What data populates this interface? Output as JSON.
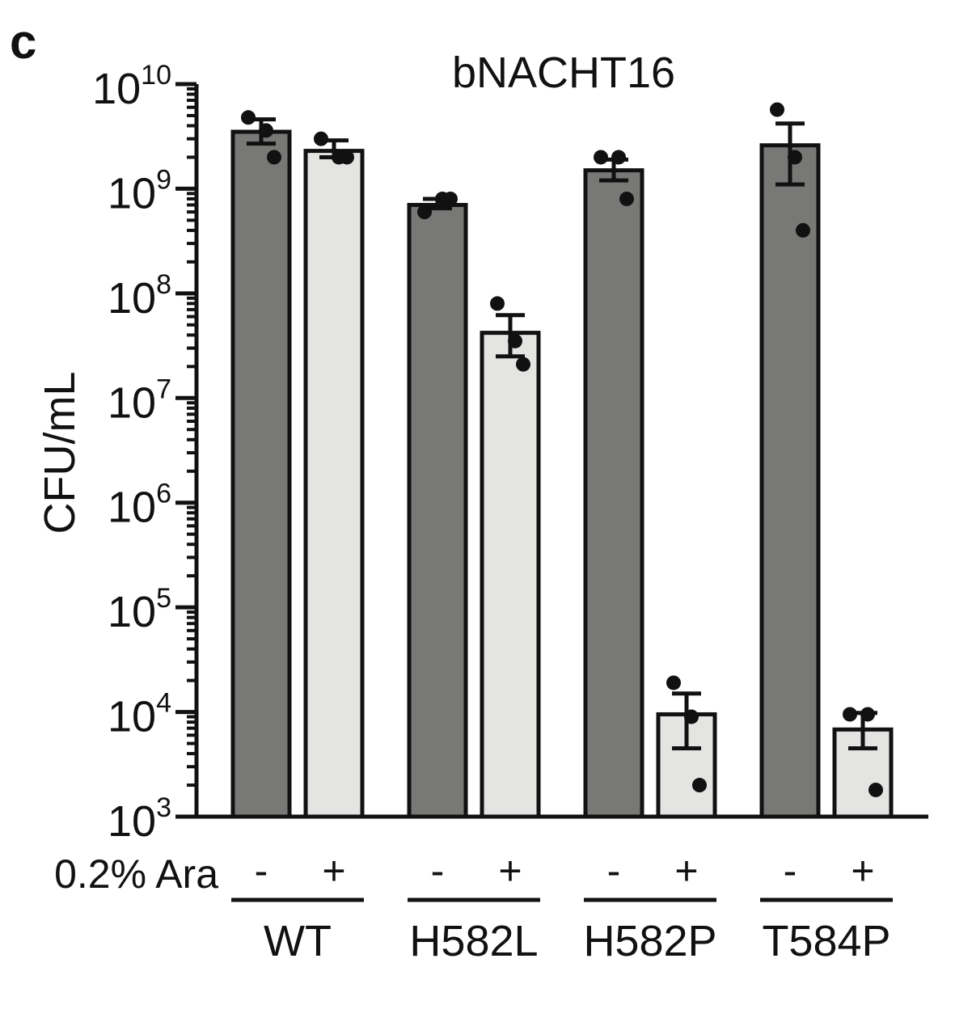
{
  "chart_data": {
    "type": "bar",
    "panel_label": "c",
    "title": "bNACHT16",
    "ylabel": "CFU/mL",
    "yscale": "log",
    "ylim": [
      1000,
      10000000000
    ],
    "ytick_labels": [
      {
        "base": "10",
        "exp": "3",
        "value": 1000
      },
      {
        "base": "10",
        "exp": "4",
        "value": 10000
      },
      {
        "base": "10",
        "exp": "5",
        "value": 100000
      },
      {
        "base": "10",
        "exp": "6",
        "value": 1000000
      },
      {
        "base": "10",
        "exp": "7",
        "value": 10000000
      },
      {
        "base": "10",
        "exp": "8",
        "value": 100000000
      },
      {
        "base": "10",
        "exp": "9",
        "value": 1000000000
      },
      {
        "base": "10",
        "exp": "10",
        "value": 10000000000
      }
    ],
    "condition_label": "0.2% Ara",
    "groups": [
      {
        "name": "WT",
        "bars": [
          {
            "ara": "-",
            "value": 3500000000,
            "err_low": 2700000000,
            "err_high": 4600000000,
            "points": [
              4800000000,
              3600000000,
              2000000000
            ]
          },
          {
            "ara": "+",
            "value": 2300000000,
            "err_low": 2000000000,
            "err_high": 2900000000,
            "points": [
              3000000000,
              2000000000,
              2000000000
            ]
          }
        ]
      },
      {
        "name": "H582L",
        "bars": [
          {
            "ara": "-",
            "value": 700000000,
            "err_low": 650000000,
            "err_high": 800000000,
            "points": [
              600000000,
              800000000,
              800000000
            ]
          },
          {
            "ara": "+",
            "value": 42000000,
            "err_low": 25000000,
            "err_high": 62000000,
            "points": [
              80000000,
              35000000,
              21000000
            ]
          }
        ]
      },
      {
        "name": "H582P",
        "bars": [
          {
            "ara": "-",
            "value": 1500000000,
            "err_low": 1200000000,
            "err_high": 1900000000,
            "points": [
              2000000000,
              2000000000,
              800000000
            ]
          },
          {
            "ara": "+",
            "value": 9500,
            "err_low": 4500,
            "err_high": 15000,
            "points": [
              19000,
              9000,
              2000
            ]
          }
        ]
      },
      {
        "name": "T584P",
        "bars": [
          {
            "ara": "-",
            "value": 2600000000,
            "err_low": 1100000000,
            "err_high": 4200000000,
            "points": [
              5700000000,
              2000000000,
              400000000
            ]
          },
          {
            "ara": "+",
            "value": 6800,
            "err_low": 4500,
            "err_high": 9800,
            "points": [
              9500,
              9500,
              1800
            ]
          }
        ]
      }
    ],
    "colors": {
      "minus_bar": "#787876",
      "plus_bar": "#e4e4e3",
      "stroke": "#111111"
    },
    "grid": false,
    "legend": "none"
  }
}
